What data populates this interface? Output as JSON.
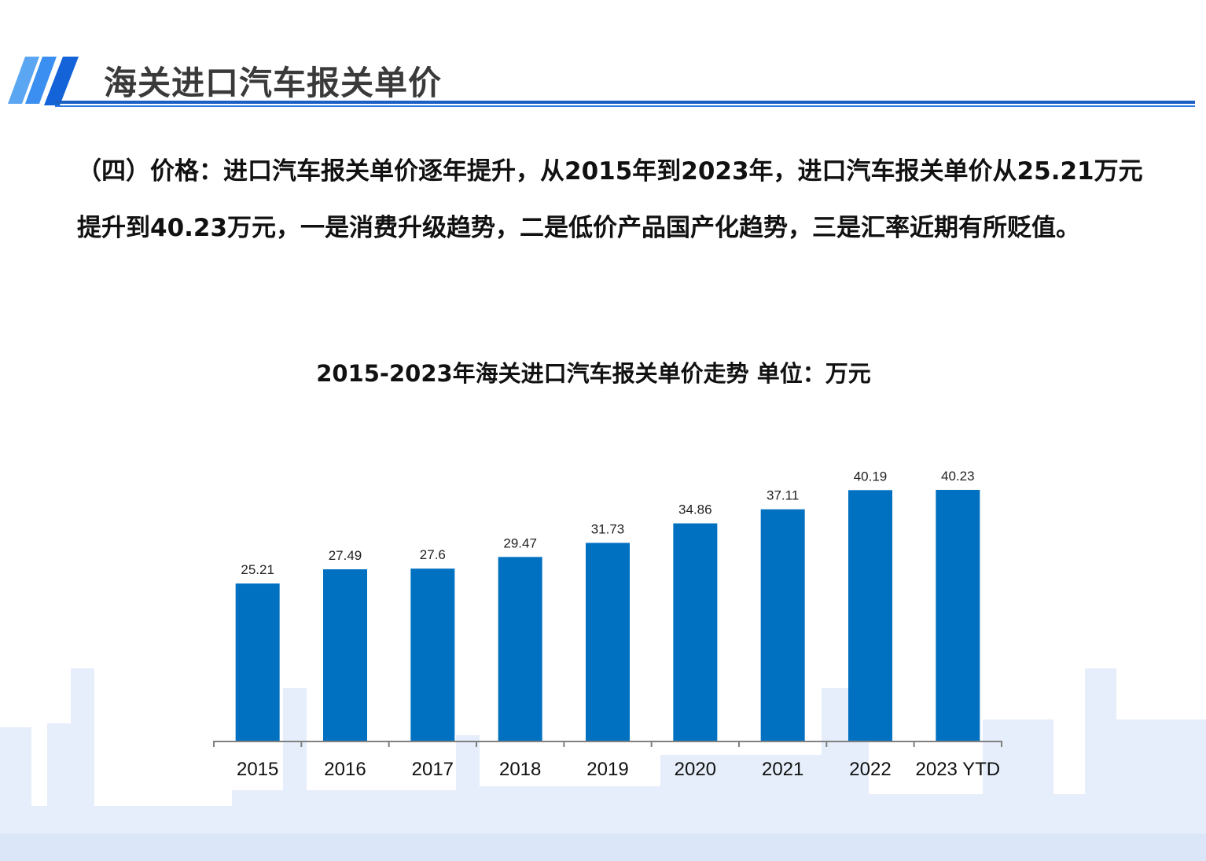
{
  "header": {
    "title": "海关进口汽车报关单价"
  },
  "intro_text": "（四）价格：进口汽车报关单价逐年提升，从2015年到2023年，进口汽车报关单价从25.21万元提升到40.23万元，一是消费升级趋势，二是低价产品国产化趋势，三是汇率近期有所贬值。",
  "colors": {
    "bar": "#0070C0",
    "accent": "#1a5fc4",
    "skyline": "#e3ecfb"
  },
  "chart_data": {
    "type": "bar",
    "title": "2015-2023年海关进口汽车报关单价走势  单位：万元",
    "categories": [
      "2015",
      "2016",
      "2017",
      "2018",
      "2019",
      "2020",
      "2021",
      "2022",
      "2023 YTD"
    ],
    "values": [
      25.21,
      27.49,
      27.6,
      29.47,
      31.73,
      34.86,
      37.11,
      40.19,
      40.23
    ],
    "data_labels": [
      "25.21",
      "27.49",
      "27.6",
      "29.47",
      "31.73",
      "34.86",
      "37.11",
      "40.19",
      "40.23"
    ],
    "ylim": [
      0,
      40.23
    ],
    "grid": false,
    "y_axis_visible": false
  }
}
